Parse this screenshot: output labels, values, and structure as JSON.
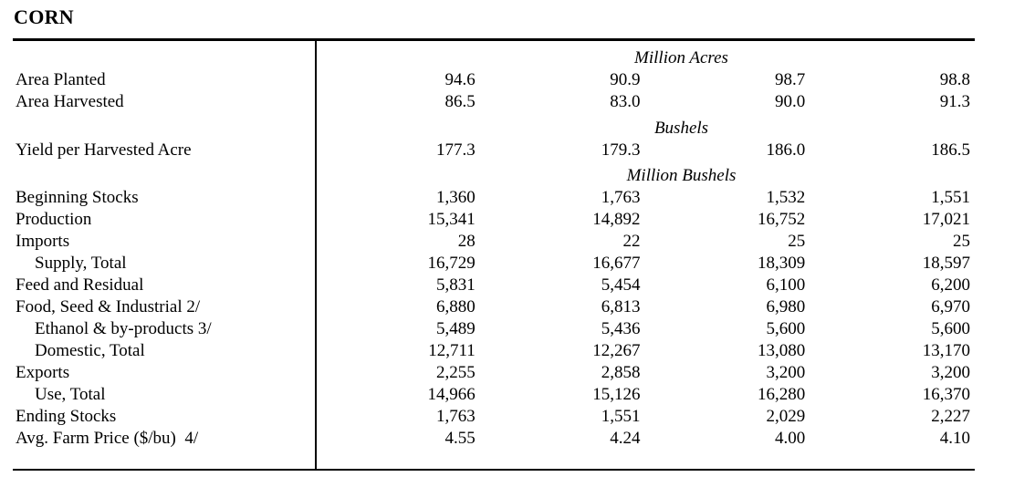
{
  "page_title": "CORN",
  "colors": {
    "text": "#000000",
    "rule": "#000000",
    "background": "#ffffff"
  },
  "table": {
    "num_data_columns": 4,
    "sections": [
      {
        "unit_header": "Million Acres",
        "rows": [
          {
            "label": "Area Planted",
            "values": [
              "94.6",
              "90.9",
              "98.7",
              "98.8"
            ]
          },
          {
            "label": "Area Harvested",
            "values": [
              "86.5",
              "83.0",
              "90.0",
              "91.3"
            ]
          }
        ]
      },
      {
        "unit_header": "Bushels",
        "rows": [
          {
            "label": "Yield per Harvested Acre",
            "values": [
              "177.3",
              "179.3",
              "186.0",
              "186.5"
            ]
          }
        ]
      },
      {
        "unit_header": "Million Bushels",
        "rows": [
          {
            "label": "Beginning Stocks",
            "values": [
              "1,360",
              "1,763",
              "1,532",
              "1,551"
            ]
          },
          {
            "label": "Production",
            "values": [
              "15,341",
              "14,892",
              "16,752",
              "17,021"
            ]
          },
          {
            "label": "Imports",
            "values": [
              "28",
              "22",
              "25",
              "25"
            ]
          },
          {
            "label": "Supply, Total",
            "indent": true,
            "values": [
              "16,729",
              "16,677",
              "18,309",
              "18,597"
            ]
          },
          {
            "label": "Feed and Residual",
            "values": [
              "5,831",
              "5,454",
              "6,100",
              "6,200"
            ]
          },
          {
            "label": "Food, Seed & Industrial 2/",
            "values": [
              "6,880",
              "6,813",
              "6,980",
              "6,970"
            ]
          },
          {
            "label": "Ethanol & by-products 3/",
            "indent": true,
            "values": [
              "5,489",
              "5,436",
              "5,600",
              "5,600"
            ]
          },
          {
            "label": "Domestic, Total",
            "indent": true,
            "values": [
              "12,711",
              "12,267",
              "13,080",
              "13,170"
            ]
          },
          {
            "label": "Exports",
            "values": [
              "2,255",
              "2,858",
              "3,200",
              "3,200"
            ]
          },
          {
            "label": "Use, Total",
            "indent": true,
            "values": [
              "14,966",
              "15,126",
              "16,280",
              "16,370"
            ]
          },
          {
            "label": "Ending Stocks",
            "values": [
              "1,763",
              "1,551",
              "2,029",
              "2,227"
            ]
          },
          {
            "label": "Avg. Farm Price ($/bu)  4/",
            "values": [
              "4.55",
              "4.24",
              "4.00",
              "4.10"
            ]
          }
        ]
      }
    ]
  }
}
